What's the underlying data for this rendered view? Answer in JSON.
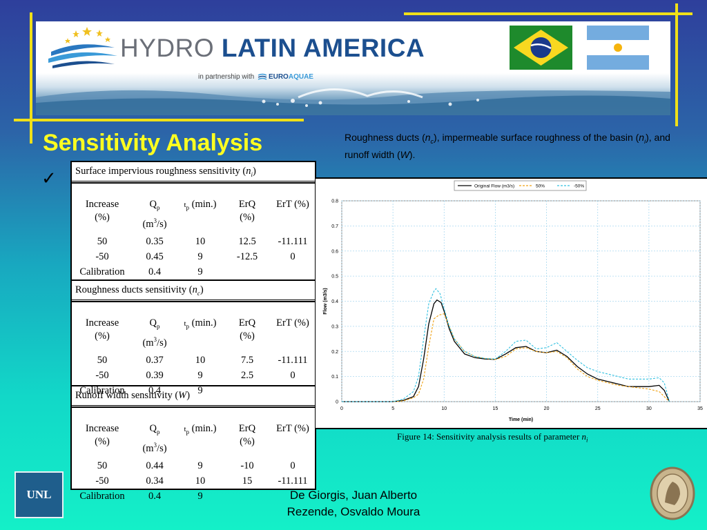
{
  "banner": {
    "brand_hydro": "HYDRO",
    "brand_latam": "LATIN AMERICA",
    "partner_text": "in partnership with",
    "partner_euro": "EURO",
    "partner_aquae": "AQUAE",
    "flags": [
      "brazil-flag",
      "argentina-flag"
    ]
  },
  "title": "Sensitivity Analysis",
  "check": "✓",
  "subtitle": {
    "part1": "Roughness ducts (",
    "nc_n": "n",
    "nc_sub": "c",
    "part2": "), impermeable surface roughness of the basin (",
    "ni_n": "n",
    "ni_sub": "i",
    "part3": "), and runoff width (",
    "w": "W",
    "part4": ")."
  },
  "table": {
    "columns": {
      "increase": "Increase",
      "increase_unit": "(%)",
      "qp": "Q",
      "qp_sub": "p",
      "qp_unit": "(m",
      "qp_sup": "3",
      "qp_unit2": "/s)",
      "tp": "t",
      "tp_sub": "p",
      "tp_unit": " (min.)",
      "erq": "ErQ",
      "erq_unit": "(%)",
      "ert": "ErT (%)"
    },
    "sections": [
      {
        "title": "Surface impervious roughness sensitivity (",
        "param": "n",
        "param_sub": "i",
        "close": ")",
        "rows": [
          [
            "50",
            "0.35",
            "10",
            "12.5",
            "-11.111"
          ],
          [
            "-50",
            "0.45",
            "9",
            "-12.5",
            "0"
          ],
          [
            "Calibration",
            "0.4",
            "9",
            "",
            ""
          ]
        ]
      },
      {
        "title": "Roughness ducts sensitivity (",
        "param": "n",
        "param_sub": "c",
        "close": ")",
        "rows": [
          [
            "50",
            "0.37",
            "10",
            "7.5",
            "-11.111"
          ],
          [
            "-50",
            "0.39",
            "9",
            "2.5",
            "0"
          ],
          [
            "Calibration",
            "0.4",
            "9",
            "",
            ""
          ]
        ]
      },
      {
        "title": "Runoff width sensitivity (",
        "param": "W",
        "param_sub": "",
        "close": ")",
        "rows": [
          [
            "50",
            "0.44",
            "9",
            "-10",
            "0"
          ],
          [
            "-50",
            "0.34",
            "10",
            "15",
            "-11.111"
          ],
          [
            "Calibration",
            "0.4",
            "9",
            "",
            ""
          ]
        ]
      }
    ]
  },
  "chart_data": {
    "type": "line",
    "xlabel": "Time (min)",
    "ylabel": "Flow (m3/s)",
    "xlim": [
      0,
      35
    ],
    "ylim": [
      0,
      0.8
    ],
    "xticks": [
      0,
      5,
      10,
      15,
      20,
      25,
      30,
      35
    ],
    "yticks": [
      0,
      0.1,
      0.2,
      0.3,
      0.4,
      0.5,
      0.6,
      0.7,
      0.8
    ],
    "grid": true,
    "legend_position": "top",
    "series": [
      {
        "name": "Original Flow (m3/s)",
        "color": "#000000",
        "style": "solid",
        "x": [
          0,
          5,
          6,
          7,
          7.5,
          8,
          8.5,
          9,
          9.3,
          9.7,
          10,
          10.5,
          11,
          12,
          13,
          14,
          15,
          16,
          17,
          18,
          19,
          20,
          21,
          22,
          23,
          24,
          25,
          26,
          27,
          28,
          29,
          30,
          31,
          31.5,
          32
        ],
        "y": [
          0,
          0,
          0.005,
          0.02,
          0.06,
          0.17,
          0.31,
          0.39,
          0.405,
          0.395,
          0.36,
          0.29,
          0.24,
          0.19,
          0.175,
          0.17,
          0.168,
          0.19,
          0.215,
          0.22,
          0.2,
          0.195,
          0.205,
          0.18,
          0.14,
          0.11,
          0.09,
          0.08,
          0.07,
          0.06,
          0.06,
          0.06,
          0.065,
          0.045,
          0
        ]
      },
      {
        "name": "50%",
        "color": "#f0a010",
        "style": "dashed",
        "x": [
          0,
          5,
          6,
          7,
          7.5,
          8,
          8.5,
          9,
          9.5,
          10,
          10.5,
          11,
          12,
          13,
          14,
          15,
          16,
          17,
          18,
          19,
          20,
          21,
          22,
          23,
          24,
          25,
          26,
          27,
          28,
          29,
          30,
          31,
          32
        ],
        "y": [
          0,
          0,
          0.003,
          0.015,
          0.03,
          0.09,
          0.22,
          0.33,
          0.345,
          0.35,
          0.3,
          0.25,
          0.2,
          0.18,
          0.172,
          0.168,
          0.18,
          0.21,
          0.215,
          0.2,
          0.195,
          0.2,
          0.175,
          0.13,
          0.1,
          0.085,
          0.075,
          0.065,
          0.06,
          0.055,
          0.05,
          0.04,
          0
        ]
      },
      {
        "name": "-50%",
        "color": "#30c0e0",
        "style": "dashed",
        "x": [
          0,
          5,
          6,
          7,
          7.5,
          8,
          8.5,
          9,
          9.2,
          9.6,
          10,
          10.5,
          11,
          12,
          13,
          14,
          15,
          16,
          17,
          18,
          19,
          20,
          21,
          22,
          23,
          24,
          25,
          26,
          27,
          28,
          29,
          30,
          31,
          31.5,
          32
        ],
        "y": [
          0,
          0,
          0.01,
          0.04,
          0.1,
          0.25,
          0.39,
          0.44,
          0.45,
          0.43,
          0.37,
          0.3,
          0.25,
          0.2,
          0.18,
          0.172,
          0.17,
          0.2,
          0.24,
          0.245,
          0.21,
          0.215,
          0.235,
          0.2,
          0.165,
          0.135,
          0.12,
          0.11,
          0.1,
          0.09,
          0.09,
          0.09,
          0.095,
          0.075,
          0
        ]
      }
    ]
  },
  "caption": {
    "text": "Figure 14: Sensitivity analysis results of parameter ",
    "param": "n",
    "param_sub": "i"
  },
  "footer": {
    "logo_text": "UNL",
    "author1": "De Giorgis, Juan Alberto",
    "author2": "Rezende, Osvaldo Moura"
  }
}
